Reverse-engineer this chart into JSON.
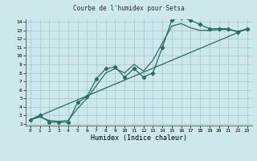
{
  "title": "Courbe de l'humidex pour Setsa",
  "xlabel": "Humidex (Indice chaleur)",
  "xlim": [
    -0.5,
    23.5
  ],
  "ylim": [
    1.8,
    14.3
  ],
  "xticks": [
    0,
    1,
    2,
    3,
    4,
    5,
    6,
    7,
    8,
    9,
    10,
    11,
    12,
    13,
    14,
    15,
    16,
    17,
    18,
    19,
    20,
    21,
    22,
    23
  ],
  "yticks": [
    2,
    3,
    4,
    5,
    6,
    7,
    8,
    9,
    10,
    11,
    12,
    13,
    14
  ],
  "bg_color": "#cde8ed",
  "grid_color": "#a8cdd4",
  "line_color": "#2d6b62",
  "line1_x": [
    0,
    1,
    2,
    3,
    4,
    5,
    6,
    7,
    8,
    9,
    10,
    11,
    12,
    13,
    14,
    15,
    16,
    17,
    18,
    19,
    20,
    21,
    22,
    23
  ],
  "line1_y": [
    2.5,
    3.0,
    2.2,
    2.2,
    2.2,
    4.5,
    5.2,
    7.3,
    8.5,
    8.7,
    7.5,
    8.5,
    7.5,
    8.0,
    11.0,
    14.2,
    14.5,
    14.2,
    13.7,
    13.2,
    13.2,
    13.2,
    12.8,
    13.2
  ],
  "line2_x": [
    0,
    23
  ],
  "line2_y": [
    2.5,
    13.2
  ],
  "line3_x": [
    0,
    1,
    2,
    3,
    4,
    5,
    6,
    7,
    8,
    9,
    10,
    11,
    12,
    13,
    14,
    15,
    16,
    17,
    18,
    19,
    20,
    21,
    22,
    23
  ],
  "line3_y": [
    2.5,
    2.8,
    2.4,
    2.3,
    2.4,
    3.8,
    5.0,
    6.5,
    8.0,
    8.5,
    8.0,
    9.0,
    8.2,
    9.5,
    11.5,
    13.5,
    13.8,
    13.3,
    13.0,
    13.0,
    13.1,
    13.1,
    12.9,
    13.1
  ],
  "title_fontsize": 5.5,
  "label_fontsize": 6.0,
  "tick_fontsize": 4.5
}
